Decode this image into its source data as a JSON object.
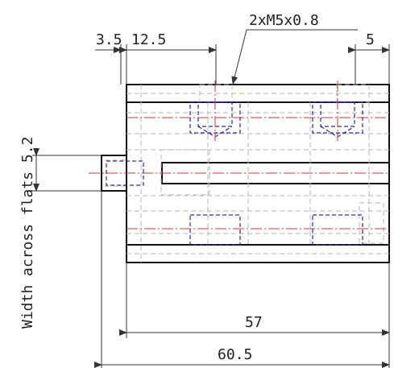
{
  "dimensions": {
    "d_3_5": "3.5",
    "d_12_5": "12.5",
    "thread_callout": "2xM5x0.8",
    "d_5": "5",
    "d_57": "57",
    "d_60_5": "60.5",
    "side_note": "Width across flats 5.2"
  },
  "colors": {
    "outline": "#111111",
    "hidden_lines": "#b5b5b5",
    "thread_lines": "#2a2aa8",
    "center_lines": "#e03030"
  }
}
